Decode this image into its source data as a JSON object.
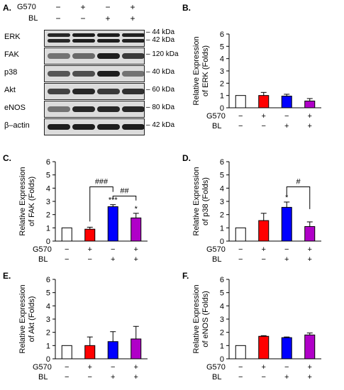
{
  "panels": {
    "A": "A.",
    "B": "B.",
    "C": "C.",
    "D": "D.",
    "E": "E.",
    "F": "F."
  },
  "blot": {
    "treatments": [
      {
        "name": "G570",
        "signs": [
          "−",
          "+",
          "−",
          "+"
        ]
      },
      {
        "name": "BL",
        "signs": [
          "−",
          "−",
          "+",
          "+"
        ]
      }
    ],
    "rows": [
      {
        "label": "ERK",
        "sizes": [
          "– 44 kDa",
          "– 42 kDa"
        ],
        "intensity": [
          0.85,
          0.9,
          0.9,
          0.88
        ],
        "double": true
      },
      {
        "label": "FAK",
        "sizes": [
          "– 120 kDa"
        ],
        "intensity": [
          0.45,
          0.5,
          0.9,
          0.75
        ],
        "double": false
      },
      {
        "label": "p38",
        "sizes": [
          "– 40 kDa"
        ],
        "intensity": [
          0.6,
          0.65,
          0.9,
          0.45
        ],
        "double": false
      },
      {
        "label": "Akt",
        "sizes": [
          "– 60 kDa"
        ],
        "intensity": [
          0.7,
          0.85,
          0.75,
          0.8
        ],
        "double": false
      },
      {
        "label": "eNOS",
        "sizes": [
          "– 80 kDa"
        ],
        "intensity": [
          0.45,
          0.85,
          0.85,
          0.85
        ],
        "double": false
      },
      {
        "label": "β–actin",
        "sizes": [
          "– 42 kDa"
        ],
        "intensity": [
          0.9,
          0.9,
          0.9,
          0.9
        ],
        "double": false
      }
    ]
  },
  "colors": {
    "control": "#ffffff",
    "g570": "#ff0000",
    "bl": "#0000ff",
    "combo": "#b000c8"
  },
  "chart_data": [
    {
      "id": "B",
      "type": "bar",
      "ylabel": "Relative Expression of ERK (Folds)",
      "ylim": [
        0,
        6
      ],
      "yticks": [
        0,
        1,
        2,
        3,
        4,
        5,
        6
      ],
      "values": [
        1.0,
        1.0,
        0.95,
        0.55
      ],
      "errors": [
        0,
        0.25,
        0.15,
        0.2
      ],
      "stars": [
        "",
        "",
        "",
        ""
      ],
      "brackets": [],
      "treatments": [
        {
          "name": "G570",
          "signs": [
            "−",
            "+",
            "−",
            "+"
          ]
        },
        {
          "name": "BL",
          "signs": [
            "−",
            "−",
            "+",
            "+"
          ]
        }
      ]
    },
    {
      "id": "C",
      "type": "bar",
      "ylabel": "Relative Expression of FAK (Folds)",
      "ylim": [
        0,
        6
      ],
      "yticks": [
        0,
        1,
        2,
        3,
        4,
        5,
        6
      ],
      "values": [
        1.0,
        0.9,
        2.6,
        1.75
      ],
      "errors": [
        0,
        0.15,
        0.15,
        0.35
      ],
      "stars": [
        "",
        "",
        "***",
        "*"
      ],
      "brackets": [
        {
          "from": 1,
          "to": 2,
          "label": "###",
          "level": 4.1
        },
        {
          "from": 2,
          "to": 3,
          "label": "##",
          "level": 3.4
        }
      ],
      "treatments": [
        {
          "name": "G570",
          "signs": [
            "−",
            "+",
            "−",
            "+"
          ]
        },
        {
          "name": "BL",
          "signs": [
            "−",
            "−",
            "+",
            "+"
          ]
        }
      ]
    },
    {
      "id": "D",
      "type": "bar",
      "ylabel": "Relative Expression of p38 (Folds)",
      "ylim": [
        0,
        6
      ],
      "yticks": [
        0,
        1,
        2,
        3,
        4,
        5,
        6
      ],
      "values": [
        1.0,
        1.55,
        2.55,
        1.1
      ],
      "errors": [
        0,
        0.55,
        0.4,
        0.35
      ],
      "stars": [
        "",
        "",
        "*",
        ""
      ],
      "brackets": [
        {
          "from": 2,
          "to": 3,
          "label": "#",
          "level": 4.1
        }
      ],
      "treatments": [
        {
          "name": "G570",
          "signs": [
            "−",
            "+",
            "−",
            "+"
          ]
        },
        {
          "name": "BL",
          "signs": [
            "−",
            "−",
            "+",
            "+"
          ]
        }
      ]
    },
    {
      "id": "E",
      "type": "bar",
      "ylabel": "Relative Expression of Akt (Folds)",
      "ylim": [
        0,
        6
      ],
      "yticks": [
        0,
        1,
        2,
        3,
        4,
        5,
        6
      ],
      "values": [
        1.0,
        1.0,
        1.3,
        1.5
      ],
      "errors": [
        0,
        0.65,
        0.75,
        0.95
      ],
      "stars": [
        "",
        "",
        "",
        ""
      ],
      "brackets": [],
      "treatments": [
        {
          "name": "G570",
          "signs": [
            "−",
            "+",
            "−",
            "+"
          ]
        },
        {
          "name": "BL",
          "signs": [
            "−",
            "−",
            "+",
            "+"
          ]
        }
      ]
    },
    {
      "id": "F",
      "type": "bar",
      "ylabel": "Relative Expression of eNOS (Folds)",
      "ylim": [
        0,
        6
      ],
      "yticks": [
        0,
        1,
        2,
        3,
        4,
        5,
        6
      ],
      "values": [
        1.0,
        1.7,
        1.6,
        1.8
      ],
      "errors": [
        0,
        0.05,
        0.05,
        0.15
      ],
      "stars": [
        "",
        "",
        "",
        ""
      ],
      "brackets": [],
      "treatments": [
        {
          "name": "G570",
          "signs": [
            "−",
            "+",
            "−",
            "+"
          ]
        },
        {
          "name": "BL",
          "signs": [
            "−",
            "−",
            "+",
            "+"
          ]
        }
      ]
    }
  ]
}
